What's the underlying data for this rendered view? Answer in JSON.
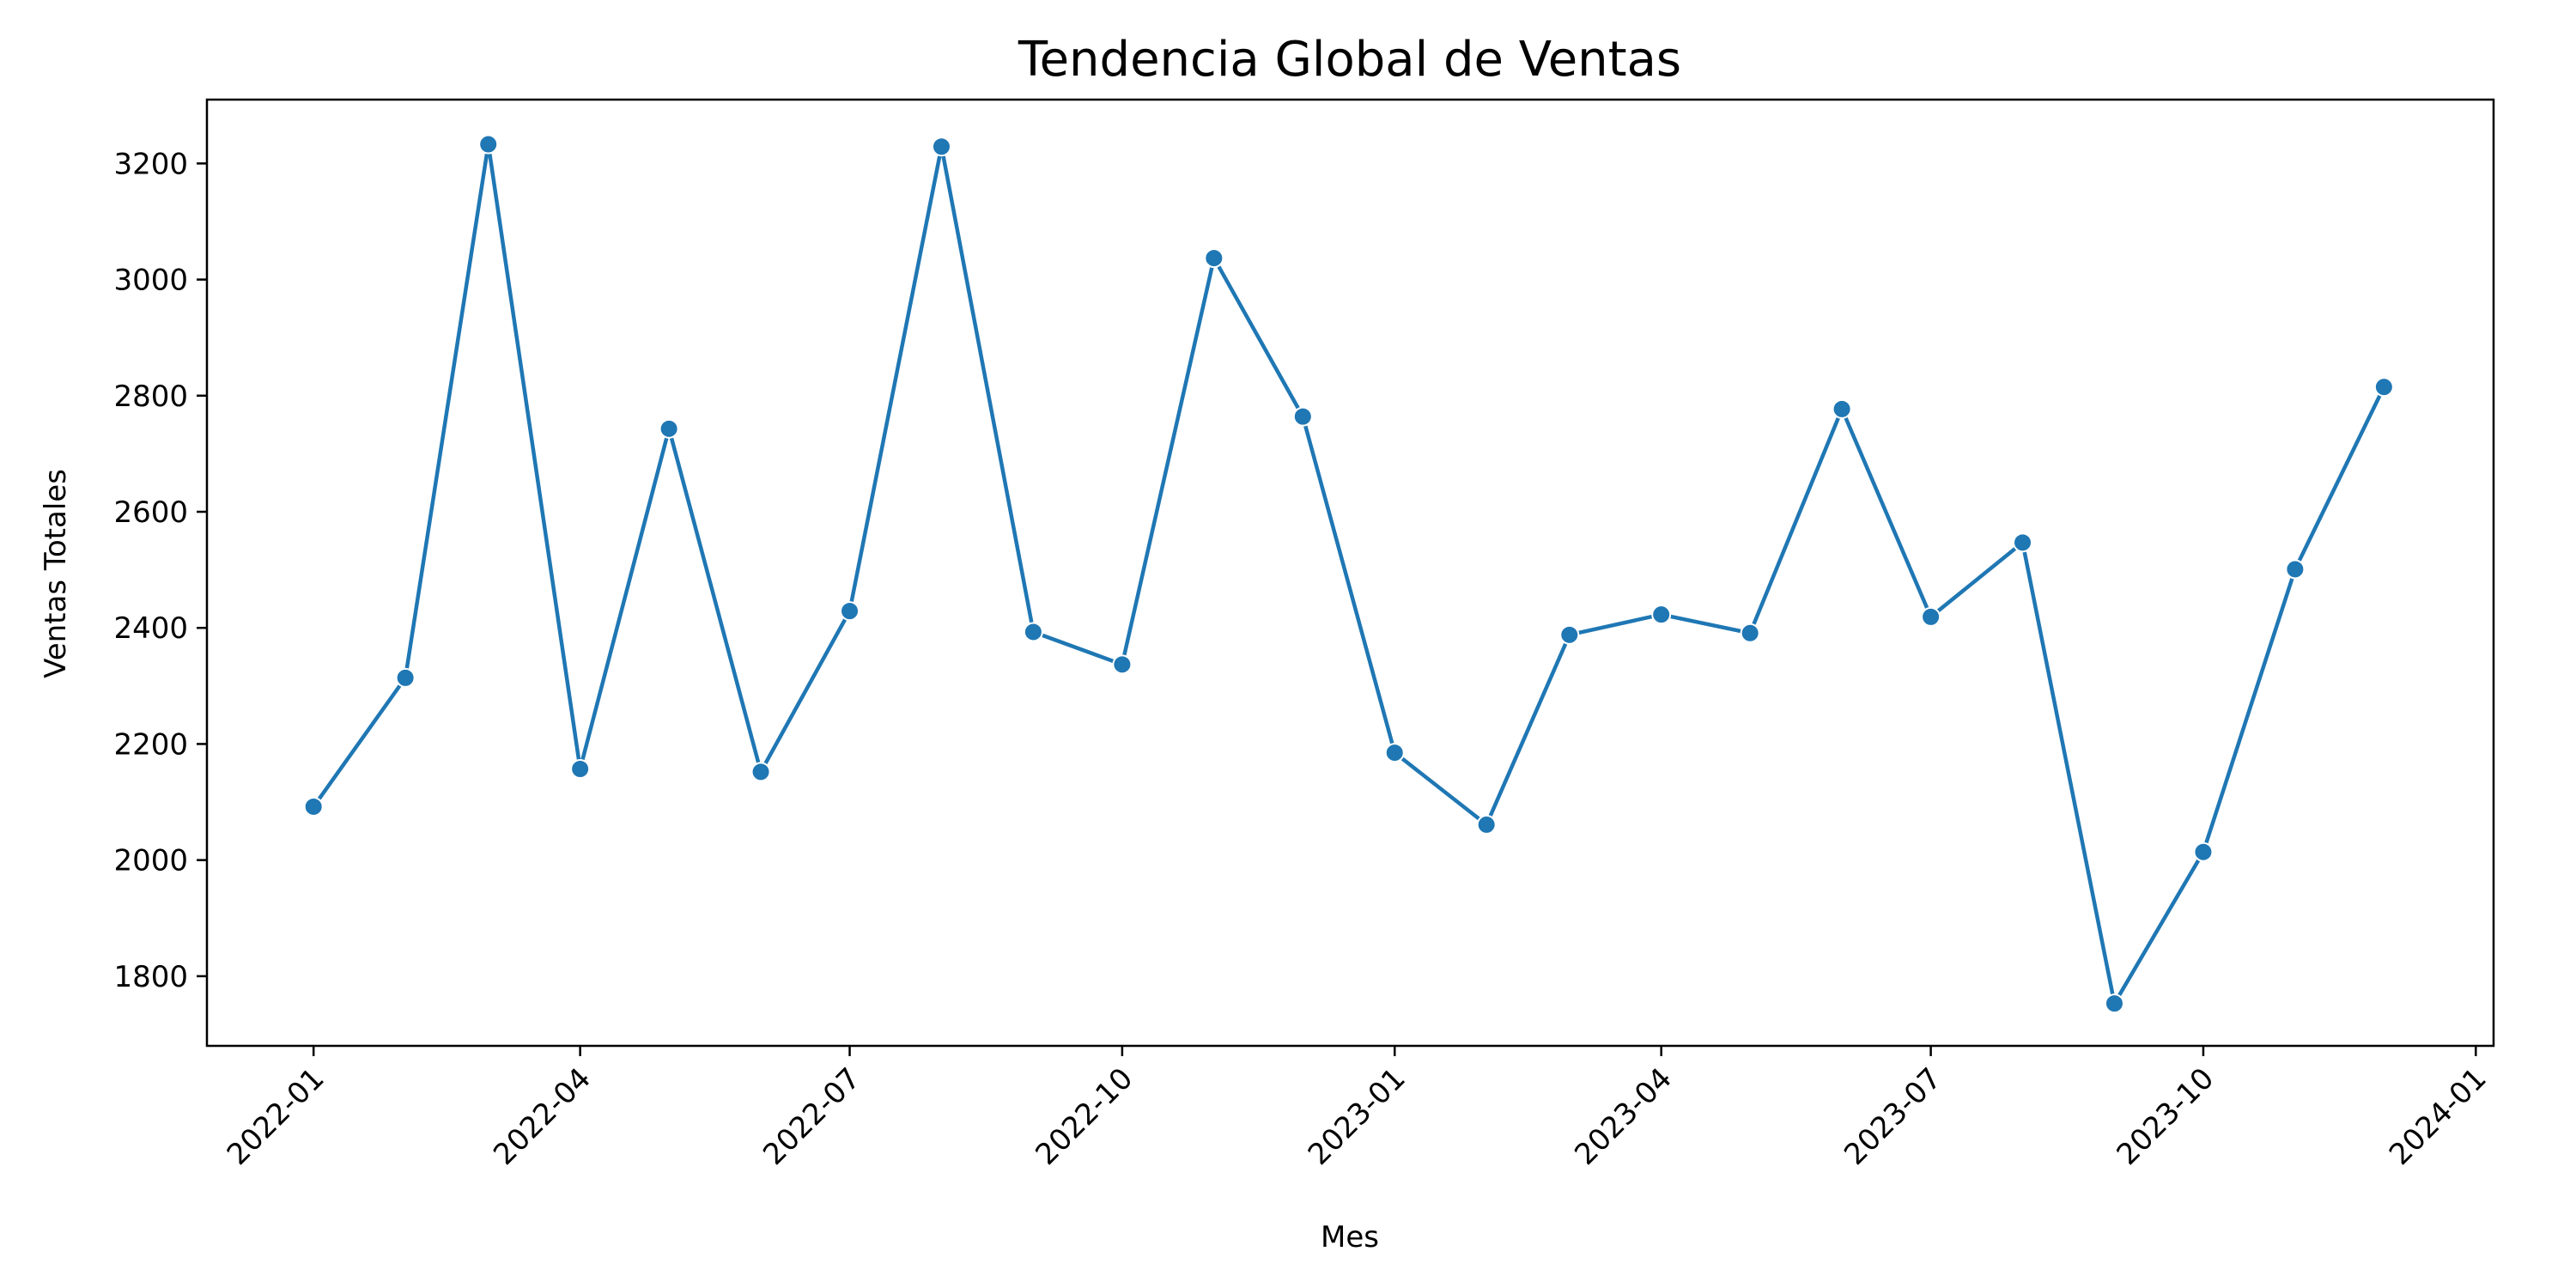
{
  "chart_data": {
    "type": "line",
    "title": "Tendencia Global de Ventas",
    "xlabel": "Mes",
    "ylabel": "Ventas Totales",
    "x": [
      "2022-01",
      "2022-02",
      "2022-03",
      "2022-04",
      "2022-05",
      "2022-06",
      "2022-07",
      "2022-08",
      "2022-09",
      "2022-10",
      "2022-11",
      "2022-12",
      "2023-01",
      "2023-02",
      "2023-03",
      "2023-04",
      "2023-05",
      "2023-06",
      "2023-07",
      "2023-08",
      "2023-09",
      "2023-10",
      "2023-11",
      "2023-12"
    ],
    "series": [
      {
        "values": [
          2092,
          2314,
          3233,
          2157,
          2743,
          2152,
          2429,
          3229,
          2393,
          2337,
          3037,
          2764,
          2185,
          2061,
          2388,
          2423,
          2391,
          2777,
          2419,
          2547,
          1753,
          2014,
          2501,
          2815
        ],
        "color": "#1f77b4"
      }
    ],
    "x_ticks": [
      "2022-01",
      "2022-04",
      "2022-07",
      "2022-10",
      "2023-01",
      "2023-04",
      "2023-07",
      "2023-10",
      "2024-01"
    ],
    "y_ticks": [
      1800,
      2000,
      2200,
      2400,
      2600,
      2800,
      3000,
      3200
    ],
    "xlim": [
      "2021-11-26",
      "2024-01-07"
    ],
    "ylim": [
      1680,
      3310
    ],
    "grid": false,
    "marker": "circle"
  }
}
